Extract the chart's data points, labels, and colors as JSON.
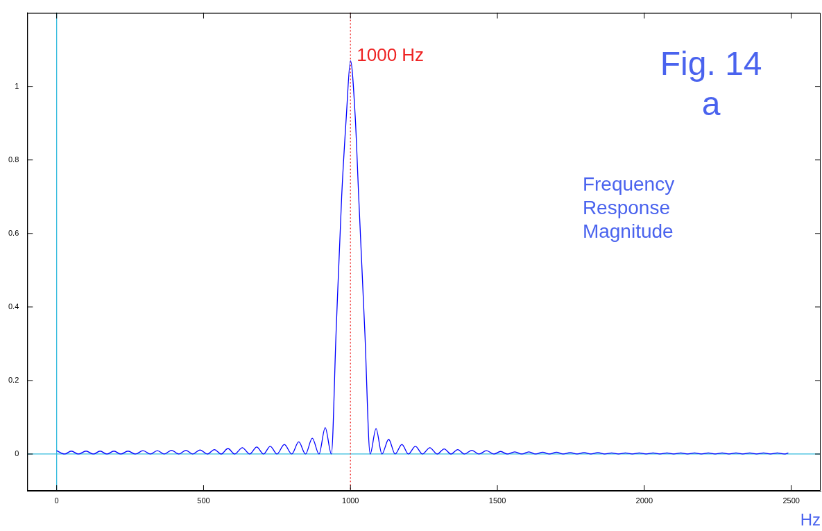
{
  "chart_data": {
    "type": "line",
    "xlabel": "Hz",
    "annotations": [
      "Fig. 14\na",
      "Frequency\nResponse\nMagnitude"
    ],
    "x": [
      0,
      27,
      50,
      74,
      100,
      125,
      148,
      171,
      195,
      218,
      243,
      268,
      294,
      319,
      343,
      366,
      391,
      416,
      440,
      463,
      488,
      513,
      537,
      560,
      583,
      606,
      632,
      657,
      681,
      704,
      727,
      750,
      775,
      800,
      824,
      847,
      870,
      893,
      914,
      935,
      951,
      970,
      986,
      1000,
      1016,
      1028,
      1049,
      1067,
      1087,
      1107,
      1130,
      1152,
      1175,
      1197,
      1221,
      1245,
      1270,
      1295,
      1319,
      1342,
      1365,
      1388,
      1413,
      1437,
      1463,
      1488,
      1511,
      1534,
      1559,
      1583,
      1607,
      1630,
      1654,
      1677,
      1701,
      1724,
      1748,
      1771,
      1795,
      1818,
      1842,
      1865,
      1889,
      1912,
      1936,
      1959,
      1983,
      2006,
      2030,
      2053,
      2077,
      2100,
      2124,
      2147,
      2171,
      2194,
      2218,
      2241,
      2265,
      2288,
      2312,
      2335,
      2359,
      2382,
      2406,
      2429,
      2453,
      2476,
      2490
    ],
    "series": [
      {
        "color": "#0000ff",
        "values": [
          0.009,
          0,
          0.008,
          0,
          0.008,
          0,
          0.008,
          0,
          0.008,
          0,
          0.008,
          0,
          0.009,
          0,
          0.009,
          0,
          0.01,
          0,
          0.01,
          0,
          0.011,
          0,
          0.012,
          0,
          0.015,
          0,
          0.017,
          0,
          0.019,
          0,
          0.021,
          0,
          0.026,
          0,
          0.033,
          0,
          0.043,
          0,
          0.072,
          0,
          0.33,
          0.7,
          0.92,
          1.07,
          0.92,
          0.7,
          0.33,
          0,
          0.069,
          0,
          0.04,
          0,
          0.026,
          0,
          0.021,
          0,
          0.017,
          0,
          0.014,
          0,
          0.012,
          0,
          0.01,
          0,
          0.009,
          0,
          0.007,
          0,
          0.006,
          0,
          0.006,
          0,
          0.005,
          0,
          0.005,
          0,
          0.004,
          0,
          0.004,
          0,
          0.004,
          0,
          0.003,
          0,
          0.003,
          0,
          0.003,
          0,
          0.003,
          0,
          0.003,
          0,
          0.003,
          0,
          0.003,
          0,
          0.003,
          0,
          0.003,
          0,
          0.003,
          0,
          0.003,
          0,
          0.003,
          0,
          0.003,
          0,
          0.003
        ]
      }
    ],
    "xlim": [
      -100,
      2600
    ],
    "ylim": [
      -0.1,
      1.2
    ],
    "xticks": [
      0,
      500,
      1000,
      1500,
      2000,
      2500
    ],
    "yticks": [
      0,
      0.2,
      0.4,
      0.6,
      0.8,
      1
    ],
    "grid": false,
    "legend": false,
    "marker": "none",
    "line_style": "solid",
    "ref_lines": [
      {
        "axis": "x",
        "value": 0,
        "color": "#33bbdd",
        "line_style": "solid"
      },
      {
        "axis": "y",
        "value": 0,
        "color": "#33bbdd",
        "line_style": "solid"
      },
      {
        "axis": "x",
        "value": 1000,
        "label": "1000 Hz",
        "color": "#ee2222",
        "line_style": "dotted"
      }
    ]
  }
}
